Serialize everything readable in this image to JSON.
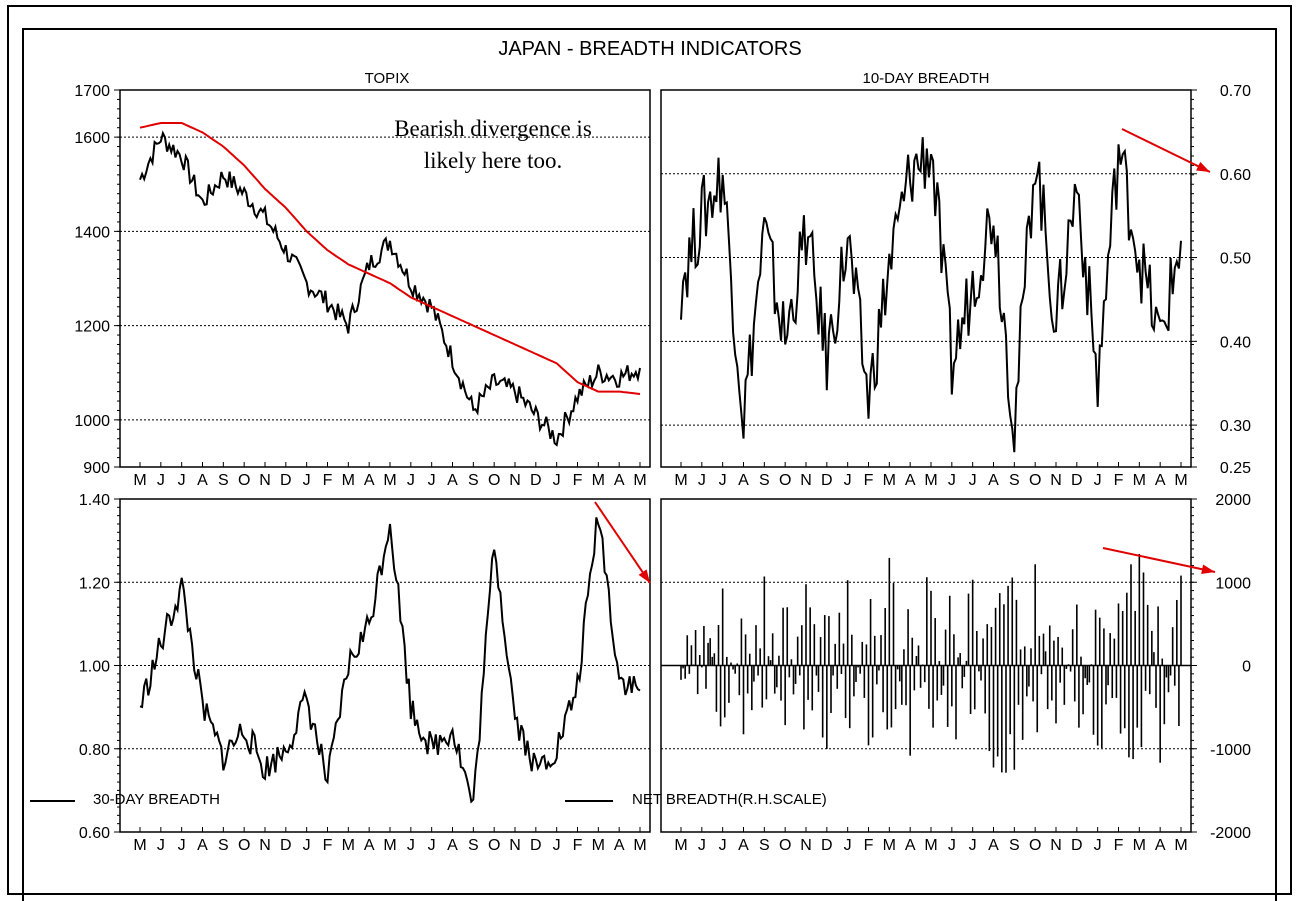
{
  "title": "JAPAN - BREADTH INDICATORS",
  "month_labels": [
    "M",
    "J",
    "J",
    "A",
    "S",
    "O",
    "N",
    "D",
    "J",
    "F",
    "M",
    "A",
    "M",
    "J",
    "J",
    "A",
    "S",
    "O",
    "N",
    "D",
    "J",
    "F",
    "M",
    "A",
    "M"
  ],
  "legend": {
    "left_label": "30-DAY BREADTH",
    "right_label": "NET BREADTH(R.H.SCALE)"
  },
  "annotation": {
    "line1": "Bearish divergence is",
    "line2": "likely here too.",
    "color": "#1a1a8c"
  },
  "colors": {
    "price": "#000000",
    "moving_average": "#e00000",
    "arrow": "#e00000"
  },
  "chart_data": [
    {
      "type": "line",
      "title": "TOPIX",
      "ylim": [
        900,
        1700
      ],
      "yticks": [
        900,
        1000,
        1200,
        1400,
        1600,
        1700
      ],
      "ytick_labels": [
        "900",
        "1000",
        "1200",
        "1400",
        "1600",
        "1700"
      ],
      "gridlines": [
        1000,
        1200,
        1400,
        1600
      ],
      "axis_side": "left",
      "x": [
        "May",
        "Jun",
        "Jul",
        "Aug",
        "Sep",
        "Oct",
        "Nov",
        "Dec",
        "Jan",
        "Feb",
        "Mar",
        "Apr",
        "May",
        "Jun",
        "Jul",
        "Aug",
        "Sep",
        "Oct",
        "Nov",
        "Dec",
        "Jan",
        "Feb",
        "Mar",
        "Apr",
        "May"
      ],
      "series": [
        {
          "values": [
            1510,
            1600,
            1560,
            1460,
            1520,
            1480,
            1430,
            1360,
            1290,
            1250,
            1200,
            1330,
            1380,
            1290,
            1240,
            1130,
            1020,
            1080,
            1060,
            1010,
            960,
            1050,
            1100,
            1090,
            1110
          ]
        },
        {
          "values": [
            1620,
            1630,
            1630,
            1610,
            1580,
            1540,
            1490,
            1450,
            1400,
            1360,
            1330,
            1310,
            1290,
            1260,
            1240,
            1220,
            1200,
            1180,
            1160,
            1140,
            1120,
            1080,
            1060,
            1060,
            1055
          ]
        }
      ]
    },
    {
      "type": "line",
      "title": "10-DAY BREADTH",
      "ylim": [
        0.25,
        0.7
      ],
      "yticks": [
        0.25,
        0.3,
        0.4,
        0.5,
        0.6,
        0.7
      ],
      "ytick_labels": [
        "0.25",
        "0.30",
        "0.40",
        "0.50",
        "0.60",
        "0.70"
      ],
      "gridlines": [
        0.3,
        0.4,
        0.5,
        0.6
      ],
      "axis_side": "right",
      "x": [
        "May",
        "Jun",
        "Jul",
        "Aug",
        "Sep",
        "Oct",
        "Nov",
        "Dec",
        "Jan",
        "Feb",
        "Mar",
        "Apr",
        "May",
        "Jun",
        "Jul",
        "Aug",
        "Sep",
        "Oct",
        "Nov",
        "Dec",
        "Jan",
        "Feb",
        "Mar",
        "Apr",
        "May"
      ],
      "series": [
        {
          "values": [
            0.47,
            0.55,
            0.6,
            0.31,
            0.53,
            0.4,
            0.53,
            0.38,
            0.52,
            0.33,
            0.49,
            0.6,
            0.63,
            0.37,
            0.47,
            0.56,
            0.3,
            0.63,
            0.42,
            0.59,
            0.35,
            0.63,
            0.5,
            0.4,
            0.52
          ]
        }
      ]
    },
    {
      "type": "line",
      "title": "",
      "ylim": [
        0.6,
        1.4
      ],
      "yticks": [
        0.6,
        0.8,
        1.0,
        1.2,
        1.4
      ],
      "ytick_labels": [
        "0.60",
        "0.80",
        "1.00",
        "1.20",
        "1.40"
      ],
      "gridlines": [
        0.8,
        1.0,
        1.2
      ],
      "axis_side": "left",
      "x": [
        "May",
        "Jun",
        "Jul",
        "Aug",
        "Sep",
        "Oct",
        "Nov",
        "Dec",
        "Jan",
        "Feb",
        "Mar",
        "Apr",
        "May",
        "Jun",
        "Jul",
        "Aug",
        "Sep",
        "Oct",
        "Nov",
        "Dec",
        "Jan",
        "Feb",
        "Mar",
        "Apr",
        "May"
      ],
      "series": [
        {
          "values": [
            0.9,
            1.05,
            1.19,
            0.9,
            0.78,
            0.85,
            0.75,
            0.8,
            0.92,
            0.72,
            1.0,
            1.1,
            1.35,
            0.9,
            0.8,
            0.85,
            0.66,
            1.3,
            0.88,
            0.75,
            0.8,
            0.95,
            1.37,
            0.97,
            0.94
          ]
        }
      ]
    },
    {
      "type": "bar",
      "title": "",
      "ylim": [
        -2000,
        2000
      ],
      "yticks": [
        -2000,
        -1000,
        0,
        1000,
        2000
      ],
      "ytick_labels": [
        "-2000",
        "-1000",
        "0",
        "1000",
        "2000"
      ],
      "gridlines": [
        -1000,
        0,
        1000
      ],
      "axis_side": "right",
      "x": [
        "May",
        "Jun",
        "Jul",
        "Aug",
        "Sep",
        "Oct",
        "Nov",
        "Dec",
        "Jan",
        "Feb",
        "Mar",
        "Apr",
        "May",
        "Jun",
        "Jul",
        "Aug",
        "Sep",
        "Oct",
        "Nov",
        "Dec",
        "Jan",
        "Feb",
        "Mar",
        "Apr",
        "May"
      ],
      "series": [
        {
          "values": [
            150,
            -500,
            700,
            -900,
            800,
            -700,
            900,
            -850,
            1000,
            -1000,
            1250,
            -900,
            1100,
            -950,
            900,
            -1100,
            -1450,
            900,
            -900,
            1000,
            -1050,
            1100,
            1150,
            -800,
            1200
          ]
        }
      ]
    }
  ]
}
